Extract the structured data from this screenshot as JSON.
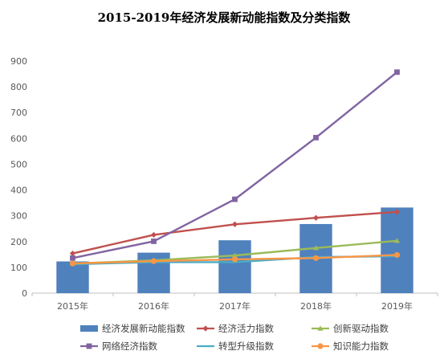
{
  "chart_data": {
    "type": "bar+line",
    "title": "2015-2019年经济发展新动能指数及分类指数",
    "xlabel": "",
    "ylabel": "",
    "categories": [
      "2015年",
      "2016年",
      "2017年",
      "2018年",
      "2019年"
    ],
    "ylim": [
      0,
      900
    ],
    "yticks": [
      0,
      100,
      200,
      300,
      400,
      500,
      600,
      700,
      800,
      900
    ],
    "grid": false,
    "legend_position": "bottom",
    "series": [
      {
        "name": "经济发展新动能指数",
        "kind": "bar",
        "color": "#4f81bd",
        "values": [
          123,
          157,
          205,
          268,
          332
        ]
      },
      {
        "name": "经济活力指数",
        "kind": "line",
        "marker": "diamond",
        "color": "#c0504d",
        "values": [
          154,
          226,
          267,
          292,
          315
        ]
      },
      {
        "name": "创新驱动指数",
        "kind": "line",
        "marker": "triangle",
        "color": "#9bbb59",
        "values": [
          115,
          127,
          146,
          175,
          203
        ]
      },
      {
        "name": "网络经济指数",
        "kind": "line",
        "marker": "square",
        "color": "#8064a2",
        "values": [
          136,
          201,
          364,
          603,
          857
        ]
      },
      {
        "name": "转型升级指数",
        "kind": "line",
        "marker": "none",
        "color": "#4bacc6",
        "values": [
          112,
          120,
          120,
          140,
          143
        ]
      },
      {
        "name": "知识能力指数",
        "kind": "line",
        "marker": "circle",
        "color": "#f79646",
        "values": [
          115,
          124,
          131,
          136,
          148
        ]
      }
    ]
  }
}
